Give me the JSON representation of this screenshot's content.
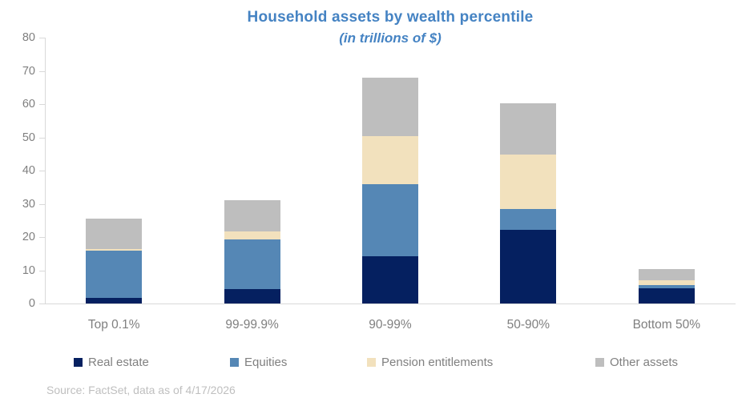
{
  "source_note": "Source: FactSet, data as of 4/17/2026",
  "colors": {
    "title_text": "#4583C3",
    "axis_line": "#D9D9D9",
    "axis_text": "#7F7F7F",
    "legend_text": "#808080",
    "source_text": "#BFBFBF"
  },
  "chart_data": {
    "type": "bar",
    "stacked": true,
    "title": "Household assets by wealth percentile",
    "subtitle": "(in trillions of $)",
    "categories": [
      "Top 0.1%",
      "99-99.9%",
      "90-99%",
      "50-90%",
      "Bottom 50%"
    ],
    "series": [
      {
        "name": "Real estate",
        "color": "#052060",
        "values": [
          1.8,
          4.3,
          14.2,
          22.1,
          4.7
        ]
      },
      {
        "name": "Equities",
        "color": "#5587B5",
        "values": [
          14.0,
          14.9,
          21.8,
          6.4,
          0.9
        ]
      },
      {
        "name": "Pension entitlements",
        "color": "#F2E1BD",
        "values": [
          0.6,
          2.6,
          14.3,
          16.3,
          1.4
        ]
      },
      {
        "name": "Other assets",
        "color": "#BEBEBE",
        "values": [
          9.2,
          9.3,
          17.7,
          15.4,
          3.3
        ]
      }
    ],
    "totals": [
      25.6,
      31.1,
      68.0,
      60.2,
      10.3
    ],
    "ylim": [
      0,
      80
    ],
    "yticks": [
      0,
      10,
      20,
      30,
      40,
      50,
      60,
      70,
      80
    ],
    "grid": false,
    "legend_position": "bottom"
  }
}
